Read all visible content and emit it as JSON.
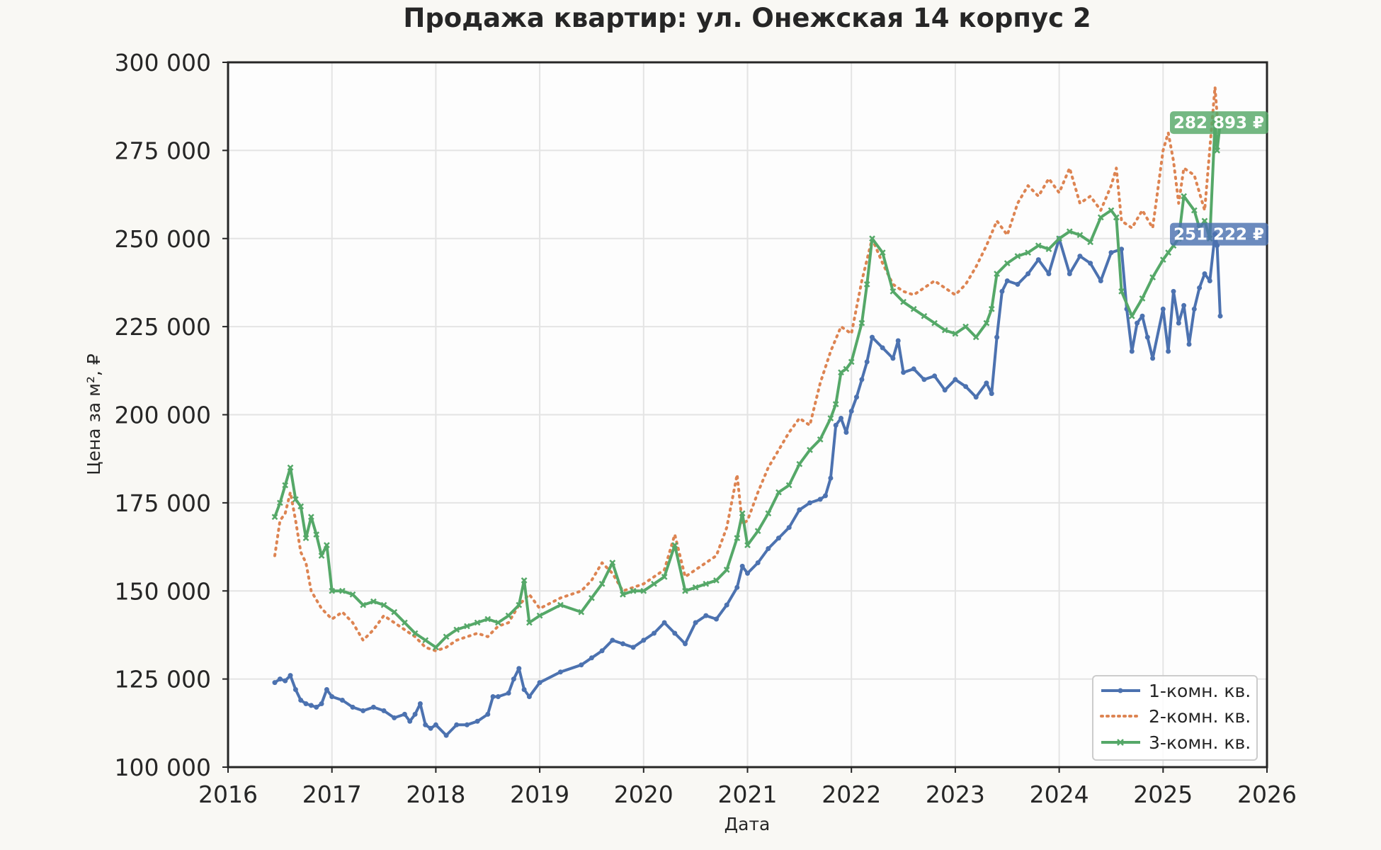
{
  "chart_data": {
    "type": "line",
    "title": "Продажа квартир: ул. Онежская 14 корпус 2",
    "xlabel": "Дата",
    "ylabel": "Цена за м², ₽",
    "xlim": [
      2016.0,
      2026.0
    ],
    "ylim": [
      100000,
      300000
    ],
    "x_ticks": [
      2016,
      2017,
      2018,
      2019,
      2020,
      2021,
      2022,
      2023,
      2024,
      2025,
      2026
    ],
    "x_tick_labels": [
      "2016",
      "2017",
      "2018",
      "2019",
      "2020",
      "2021",
      "2022",
      "2023",
      "2024",
      "2025",
      "2026"
    ],
    "y_ticks": [
      100000,
      125000,
      150000,
      175000,
      200000,
      225000,
      250000,
      275000,
      300000
    ],
    "y_tick_labels": [
      "100 000",
      "125 000",
      "150 000",
      "175 000",
      "200 000",
      "225 000",
      "250 000",
      "275 000",
      "300 000"
    ],
    "grid": true,
    "legend_position": "lower right",
    "series": [
      {
        "name": "1-комн. кв.",
        "color": "#4c72b0",
        "style": "solid",
        "marker": "dot",
        "x": [
          2016.45,
          2016.5,
          2016.55,
          2016.6,
          2016.65,
          2016.7,
          2016.75,
          2016.8,
          2016.85,
          2016.9,
          2016.95,
          2017.0,
          2017.1,
          2017.2,
          2017.3,
          2017.4,
          2017.5,
          2017.6,
          2017.7,
          2017.75,
          2017.8,
          2017.85,
          2017.9,
          2017.95,
          2018.0,
          2018.1,
          2018.2,
          2018.3,
          2018.4,
          2018.5,
          2018.55,
          2018.6,
          2018.7,
          2018.75,
          2018.8,
          2018.85,
          2018.9,
          2019.0,
          2019.2,
          2019.4,
          2019.5,
          2019.6,
          2019.7,
          2019.8,
          2019.9,
          2020.0,
          2020.1,
          2020.2,
          2020.3,
          2020.4,
          2020.5,
          2020.6,
          2020.7,
          2020.8,
          2020.9,
          2020.95,
          2021.0,
          2021.1,
          2021.2,
          2021.3,
          2021.4,
          2021.5,
          2021.6,
          2021.7,
          2021.75,
          2021.8,
          2021.85,
          2021.9,
          2021.95,
          2022.0,
          2022.05,
          2022.1,
          2022.15,
          2022.2,
          2022.3,
          2022.4,
          2022.45,
          2022.5,
          2022.6,
          2022.7,
          2022.8,
          2022.9,
          2023.0,
          2023.1,
          2023.2,
          2023.3,
          2023.35,
          2023.4,
          2023.45,
          2023.5,
          2023.6,
          2023.7,
          2023.8,
          2023.9,
          2024.0,
          2024.1,
          2024.2,
          2024.3,
          2024.4,
          2024.5,
          2024.6,
          2024.65,
          2024.7,
          2024.75,
          2024.8,
          2024.85,
          2024.9,
          2025.0,
          2025.05,
          2025.1,
          2025.15,
          2025.2,
          2025.25,
          2025.3,
          2025.35,
          2025.4,
          2025.45,
          2025.5,
          2025.52,
          2025.55
        ],
        "y": [
          124000,
          125000,
          124500,
          126000,
          122000,
          119000,
          118000,
          117500,
          117000,
          118000,
          122000,
          120000,
          119000,
          117000,
          116000,
          117000,
          116000,
          114000,
          115000,
          113000,
          115000,
          118000,
          112000,
          111000,
          112000,
          109000,
          112000,
          112000,
          113000,
          115000,
          120000,
          120000,
          121000,
          125000,
          128000,
          122000,
          120000,
          124000,
          127000,
          129000,
          131000,
          133000,
          136000,
          135000,
          134000,
          136000,
          138000,
          141000,
          138000,
          135000,
          141000,
          143000,
          142000,
          146000,
          151000,
          157000,
          155000,
          158000,
          162000,
          165000,
          168000,
          173000,
          175000,
          176000,
          177000,
          182000,
          197000,
          199000,
          195000,
          201000,
          205000,
          210000,
          215000,
          222000,
          219000,
          216000,
          221000,
          212000,
          213000,
          210000,
          211000,
          207000,
          210000,
          208000,
          205000,
          209000,
          206000,
          222000,
          235000,
          238000,
          237000,
          240000,
          244000,
          240000,
          250000,
          240000,
          245000,
          243000,
          238000,
          246000,
          247000,
          230000,
          218000,
          226000,
          228000,
          222000,
          216000,
          230000,
          218000,
          235000,
          226000,
          231000,
          220000,
          230000,
          236000,
          240000,
          238000,
          251222,
          248000,
          228000
        ]
      },
      {
        "name": "2-комн. кв.",
        "color": "#dd8452",
        "style": "dotted",
        "marker": "none",
        "x": [
          2016.45,
          2016.5,
          2016.55,
          2016.6,
          2016.65,
          2016.7,
          2016.75,
          2016.8,
          2016.9,
          2017.0,
          2017.1,
          2017.2,
          2017.3,
          2017.4,
          2017.5,
          2017.6,
          2017.7,
          2017.8,
          2017.9,
          2018.0,
          2018.1,
          2018.2,
          2018.3,
          2018.4,
          2018.5,
          2018.6,
          2018.7,
          2018.8,
          2018.9,
          2019.0,
          2019.2,
          2019.4,
          2019.5,
          2019.6,
          2019.7,
          2019.8,
          2019.9,
          2020.0,
          2020.2,
          2020.3,
          2020.4,
          2020.5,
          2020.6,
          2020.7,
          2020.8,
          2020.9,
          2020.95,
          2021.0,
          2021.1,
          2021.2,
          2021.3,
          2021.4,
          2021.5,
          2021.6,
          2021.7,
          2021.8,
          2021.9,
          2022.0,
          2022.1,
          2022.2,
          2022.3,
          2022.4,
          2022.5,
          2022.6,
          2022.7,
          2022.8,
          2022.9,
          2023.0,
          2023.1,
          2023.2,
          2023.3,
          2023.4,
          2023.5,
          2023.6,
          2023.7,
          2023.8,
          2023.9,
          2024.0,
          2024.1,
          2024.2,
          2024.3,
          2024.4,
          2024.5,
          2024.55,
          2024.6,
          2024.7,
          2024.8,
          2024.9,
          2025.0,
          2025.05,
          2025.1,
          2025.15,
          2025.2,
          2025.3,
          2025.4,
          2025.5,
          2025.52,
          2025.55
        ],
        "y": [
          160000,
          170000,
          172000,
          178000,
          170000,
          161000,
          158000,
          150000,
          145000,
          142000,
          144000,
          141000,
          136000,
          139000,
          143000,
          141000,
          139000,
          137000,
          134000,
          133000,
          134000,
          136000,
          137000,
          138000,
          137000,
          140000,
          141000,
          146000,
          149000,
          145000,
          148000,
          150000,
          153000,
          158000,
          155000,
          150000,
          151000,
          152000,
          156000,
          166000,
          154000,
          156000,
          158000,
          160000,
          168000,
          183000,
          169000,
          170000,
          178000,
          185000,
          190000,
          195000,
          199000,
          197000,
          209000,
          218000,
          225000,
          223000,
          238000,
          250000,
          243000,
          237000,
          235000,
          234000,
          236000,
          238000,
          236000,
          234000,
          237000,
          242000,
          248000,
          255000,
          251000,
          260000,
          265000,
          262000,
          267000,
          263000,
          270000,
          260000,
          262000,
          258000,
          265000,
          270000,
          255000,
          253000,
          258000,
          253000,
          275000,
          280000,
          272000,
          260000,
          270000,
          268000,
          258000,
          293000,
          285000,
          283000
        ]
      },
      {
        "name": "3-комн. кв.",
        "color": "#55a868",
        "style": "solid",
        "marker": "x",
        "x": [
          2016.45,
          2016.5,
          2016.55,
          2016.6,
          2016.65,
          2016.7,
          2016.75,
          2016.8,
          2016.85,
          2016.9,
          2016.95,
          2017.0,
          2017.1,
          2017.2,
          2017.3,
          2017.4,
          2017.5,
          2017.6,
          2017.7,
          2017.8,
          2017.9,
          2018.0,
          2018.1,
          2018.2,
          2018.3,
          2018.4,
          2018.5,
          2018.6,
          2018.7,
          2018.8,
          2018.85,
          2018.9,
          2019.0,
          2019.2,
          2019.4,
          2019.5,
          2019.6,
          2019.7,
          2019.8,
          2019.9,
          2020.0,
          2020.1,
          2020.2,
          2020.3,
          2020.4,
          2020.5,
          2020.6,
          2020.7,
          2020.8,
          2020.9,
          2020.95,
          2021.0,
          2021.1,
          2021.2,
          2021.3,
          2021.4,
          2021.5,
          2021.6,
          2021.7,
          2021.8,
          2021.85,
          2021.9,
          2021.95,
          2022.0,
          2022.1,
          2022.15,
          2022.2,
          2022.3,
          2022.4,
          2022.5,
          2022.6,
          2022.7,
          2022.8,
          2022.9,
          2023.0,
          2023.1,
          2023.2,
          2023.3,
          2023.35,
          2023.4,
          2023.5,
          2023.6,
          2023.7,
          2023.8,
          2023.9,
          2024.0,
          2024.1,
          2024.2,
          2024.3,
          2024.4,
          2024.5,
          2024.55,
          2024.6,
          2024.7,
          2024.8,
          2024.9,
          2025.0,
          2025.05,
          2025.1,
          2025.15,
          2025.2,
          2025.3,
          2025.35,
          2025.4,
          2025.45,
          2025.5,
          2025.52,
          2025.55
        ],
        "y": [
          171000,
          175000,
          180000,
          185000,
          176000,
          174000,
          165000,
          171000,
          166000,
          160000,
          163000,
          150000,
          150000,
          149000,
          146000,
          147000,
          146000,
          144000,
          141000,
          138000,
          136000,
          134000,
          137000,
          139000,
          140000,
          141000,
          142000,
          141000,
          143000,
          146000,
          153000,
          141000,
          143000,
          146000,
          144000,
          148000,
          152000,
          158000,
          149000,
          150000,
          150000,
          152000,
          154000,
          163000,
          150000,
          151000,
          152000,
          153000,
          156000,
          165000,
          172000,
          163000,
          167000,
          172000,
          178000,
          180000,
          186000,
          190000,
          193000,
          199000,
          203000,
          212000,
          213000,
          215000,
          226000,
          237000,
          250000,
          246000,
          235000,
          232000,
          230000,
          228000,
          226000,
          224000,
          223000,
          225000,
          222000,
          226000,
          230000,
          240000,
          243000,
          245000,
          246000,
          248000,
          247000,
          250000,
          252000,
          251000,
          249000,
          256000,
          258000,
          256000,
          235000,
          228000,
          233000,
          239000,
          244000,
          246000,
          248000,
          250000,
          262000,
          258000,
          253000,
          255000,
          250000,
          282893,
          275000,
          283000
        ]
      }
    ],
    "end_labels": [
      {
        "text": "282 893 ₽",
        "value": 282893,
        "color": "#55a868"
      },
      {
        "text": "251 222 ₽",
        "value": 251222,
        "color": "#4c72b0"
      }
    ]
  }
}
